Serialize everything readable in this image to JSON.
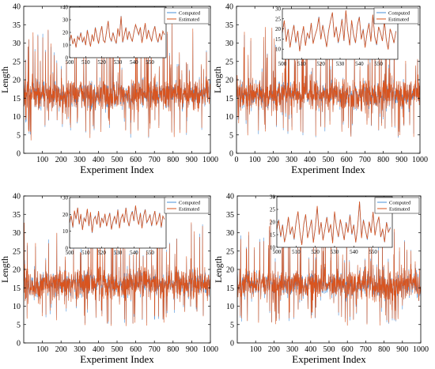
{
  "colors": {
    "computed": "#4a90d9",
    "estimated": "#d9541e",
    "axis": "#000000",
    "background": "#ffffff"
  },
  "chart_data": [
    {
      "type": "line",
      "xlabel": "Experiment Index",
      "ylabel": "Length",
      "xlim": [
        0,
        1000
      ],
      "ylim": [
        0,
        40
      ],
      "xticks": [
        100,
        200,
        300,
        400,
        500,
        600,
        700,
        800,
        900,
        1000
      ],
      "yticks": [
        0,
        5,
        10,
        15,
        20,
        25,
        30,
        35,
        40
      ],
      "x_range": [
        1,
        1000
      ],
      "typical_band": [
        10,
        22
      ],
      "extremes": [
        4,
        35
      ],
      "series": [
        {
          "name": "Computed"
        },
        {
          "name": "Estimated"
        }
      ],
      "inset": {
        "xlim": [
          500,
          560
        ],
        "ylim": [
          0,
          40
        ],
        "xticks": [
          500,
          510,
          520,
          530,
          540,
          550
        ],
        "yticks": [
          0,
          10,
          20,
          30,
          40
        ],
        "legend": [
          "Computed",
          "Estimated"
        ],
        "values": [
          13,
          18,
          11,
          15,
          8,
          17,
          14,
          20,
          12,
          16,
          10,
          22,
          15,
          9,
          18,
          13,
          24,
          17,
          11,
          19,
          25,
          14,
          12,
          21,
          29,
          16,
          13,
          20,
          15,
          11,
          23,
          17,
          33,
          12,
          18,
          24,
          14,
          21,
          16,
          13,
          20,
          26,
          22,
          18,
          24,
          12,
          19,
          27,
          15,
          22,
          17,
          13,
          20,
          25,
          16,
          12,
          19,
          14,
          21,
          18
        ]
      }
    },
    {
      "type": "line",
      "xlabel": "Experiment Index",
      "ylabel": "Length",
      "xlim": [
        0,
        1000
      ],
      "ylim": [
        0,
        40
      ],
      "xticks": [
        0,
        100,
        200,
        300,
        400,
        500,
        600,
        700,
        800,
        900,
        1000
      ],
      "yticks": [
        0,
        5,
        10,
        15,
        20,
        25,
        30,
        35,
        40
      ],
      "x_range": [
        1,
        1000
      ],
      "typical_band": [
        10,
        22
      ],
      "extremes": [
        4,
        34
      ],
      "series": [
        {
          "name": "Computed"
        },
        {
          "name": "Estimated"
        }
      ],
      "inset": {
        "xlim": [
          500,
          560
        ],
        "ylim": [
          5,
          30
        ],
        "xticks": [
          500,
          510,
          520,
          530,
          540,
          550
        ],
        "yticks": [
          10,
          15,
          20,
          25,
          30
        ],
        "legend": [
          "Computed",
          "Estimated"
        ],
        "values": [
          18,
          24,
          14,
          20,
          11,
          17,
          22,
          13,
          19,
          9,
          16,
          21,
          12,
          18,
          15,
          23,
          13,
          17,
          20,
          26,
          15,
          22,
          17,
          11,
          19,
          24,
          28,
          16,
          21,
          13,
          18,
          25,
          14,
          29,
          19,
          12,
          24,
          17,
          13,
          22,
          26,
          15,
          20,
          11,
          18,
          23,
          14,
          27,
          16,
          12,
          21,
          18,
          14,
          24,
          15,
          10,
          20,
          17,
          13,
          19
        ]
      }
    },
    {
      "type": "line",
      "xlabel": "Experiment Index",
      "ylabel": "Length",
      "xlim": [
        0,
        1000
      ],
      "ylim": [
        0,
        40
      ],
      "xticks": [
        100,
        200,
        300,
        400,
        500,
        600,
        700,
        800,
        900,
        1000
      ],
      "yticks": [
        0,
        5,
        10,
        15,
        20,
        25,
        30,
        35,
        40
      ],
      "x_range": [
        1,
        1000
      ],
      "typical_band": [
        10,
        22
      ],
      "extremes": [
        5,
        33
      ],
      "series": [
        {
          "name": "Computed"
        },
        {
          "name": "Estimated"
        }
      ],
      "inset": {
        "xlim": [
          500,
          560
        ],
        "ylim": [
          0,
          30
        ],
        "xticks": [
          500,
          510,
          520,
          530,
          540,
          550
        ],
        "yticks": [
          0,
          10,
          20,
          30
        ],
        "legend": [
          "Computed",
          "Estimated"
        ],
        "values": [
          15,
          19,
          12,
          22,
          17,
          24,
          14,
          20,
          11,
          18,
          16,
          23,
          13,
          21,
          9,
          17,
          19,
          14,
          22,
          12,
          18,
          15,
          20,
          13,
          17,
          21,
          11,
          16,
          19,
          14,
          23,
          12,
          18,
          20,
          15,
          24,
          17,
          13,
          19,
          22,
          16,
          25,
          18,
          14,
          21,
          12,
          19,
          23,
          15,
          17,
          20,
          13,
          18,
          22,
          14,
          16,
          21,
          12,
          19,
          17
        ]
      }
    },
    {
      "type": "line",
      "xlabel": "Experiment Index",
      "ylabel": "Length",
      "xlim": [
        0,
        1000
      ],
      "ylim": [
        0,
        40
      ],
      "xticks": [
        100,
        200,
        300,
        400,
        500,
        600,
        700,
        800,
        900,
        1000
      ],
      "yticks": [
        0,
        5,
        10,
        15,
        20,
        25,
        30,
        35,
        40
      ],
      "x_range": [
        1,
        1000
      ],
      "typical_band": [
        10,
        22
      ],
      "extremes": [
        5,
        33
      ],
      "series": [
        {
          "name": "Computed"
        },
        {
          "name": "Estimated"
        }
      ],
      "inset": {
        "xlim": [
          500,
          560
        ],
        "ylim": [
          10,
          30
        ],
        "xticks": [
          500,
          510,
          520,
          530,
          540,
          550
        ],
        "yticks": [
          10,
          15,
          20,
          25,
          30
        ],
        "legend": [
          "Computed",
          "Estimated"
        ],
        "values": [
          17,
          21,
          14,
          19,
          12,
          16,
          22,
          15,
          18,
          13,
          20,
          24,
          16,
          11,
          19,
          23,
          14,
          17,
          21,
          12,
          18,
          26,
          15,
          20,
          13,
          17,
          22,
          16,
          19,
          12,
          24,
          18,
          14,
          21,
          17,
          13,
          20,
          16,
          23,
          15,
          19,
          12,
          18,
          28,
          14,
          21,
          17,
          13,
          20,
          16,
          24,
          15,
          19,
          22,
          14,
          17,
          12,
          20,
          16,
          18
        ]
      }
    }
  ]
}
